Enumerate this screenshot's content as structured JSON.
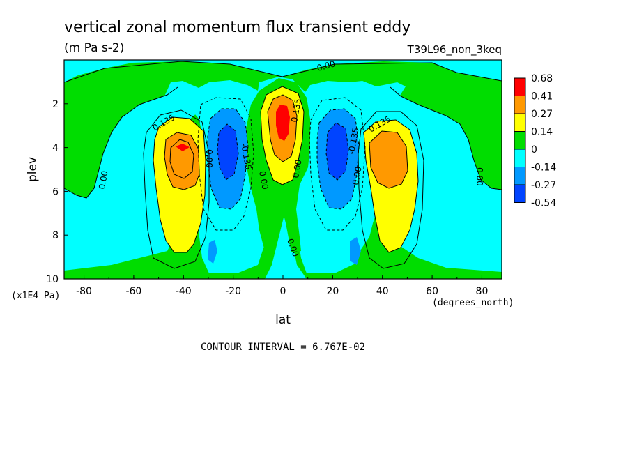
{
  "chart_data": {
    "type": "heatmap",
    "title": "vertical zonal momentum flux transient eddy",
    "units": "(m Pa s-2)",
    "run_label": "T39L96_non_3keq",
    "xlabel": "lat",
    "xunits": "(degrees_north)",
    "ylabel": "plev",
    "yunits": "(x1E4 Pa)",
    "xlim": [
      -88,
      88
    ],
    "ylim": [
      10,
      0
    ],
    "x_ticks": [
      -80,
      -60,
      -40,
      -20,
      0,
      20,
      40,
      60,
      80
    ],
    "y_ticks": [
      2,
      4,
      6,
      8,
      10
    ],
    "contour_interval_text": "CONTOUR INTERVAL = 6.767E-02",
    "colorbar": {
      "labels": [
        "0.68",
        "0.41",
        "0.27",
        "0.14",
        "0",
        "-0.14",
        "-0.27",
        "-0.54"
      ],
      "colors": [
        "#ff0000",
        "#ff9900",
        "#ffff00",
        "#00dd00",
        "#00ffff",
        "#0099ff",
        "#0044ff"
      ]
    },
    "features": [
      {
        "lat": -40,
        "plev": 4.2,
        "value": 0.68,
        "sign": "positive"
      },
      {
        "lat": -22,
        "plev": 4.3,
        "value": -0.4,
        "sign": "negative"
      },
      {
        "lat": 0,
        "plev": 2.8,
        "value": 0.68,
        "sign": "positive"
      },
      {
        "lat": 22,
        "plev": 4.3,
        "value": -0.4,
        "sign": "negative"
      },
      {
        "lat": 40,
        "plev": 4.3,
        "value": 0.5,
        "sign": "positive"
      }
    ],
    "contour_labels": [
      "0.00",
      "0.135",
      "-0.135",
      "0.00",
      "0.135",
      "0.00",
      "0.00",
      "-0.135",
      "0.00",
      "0.135",
      "0.00",
      "0.00",
      "0.00"
    ]
  }
}
